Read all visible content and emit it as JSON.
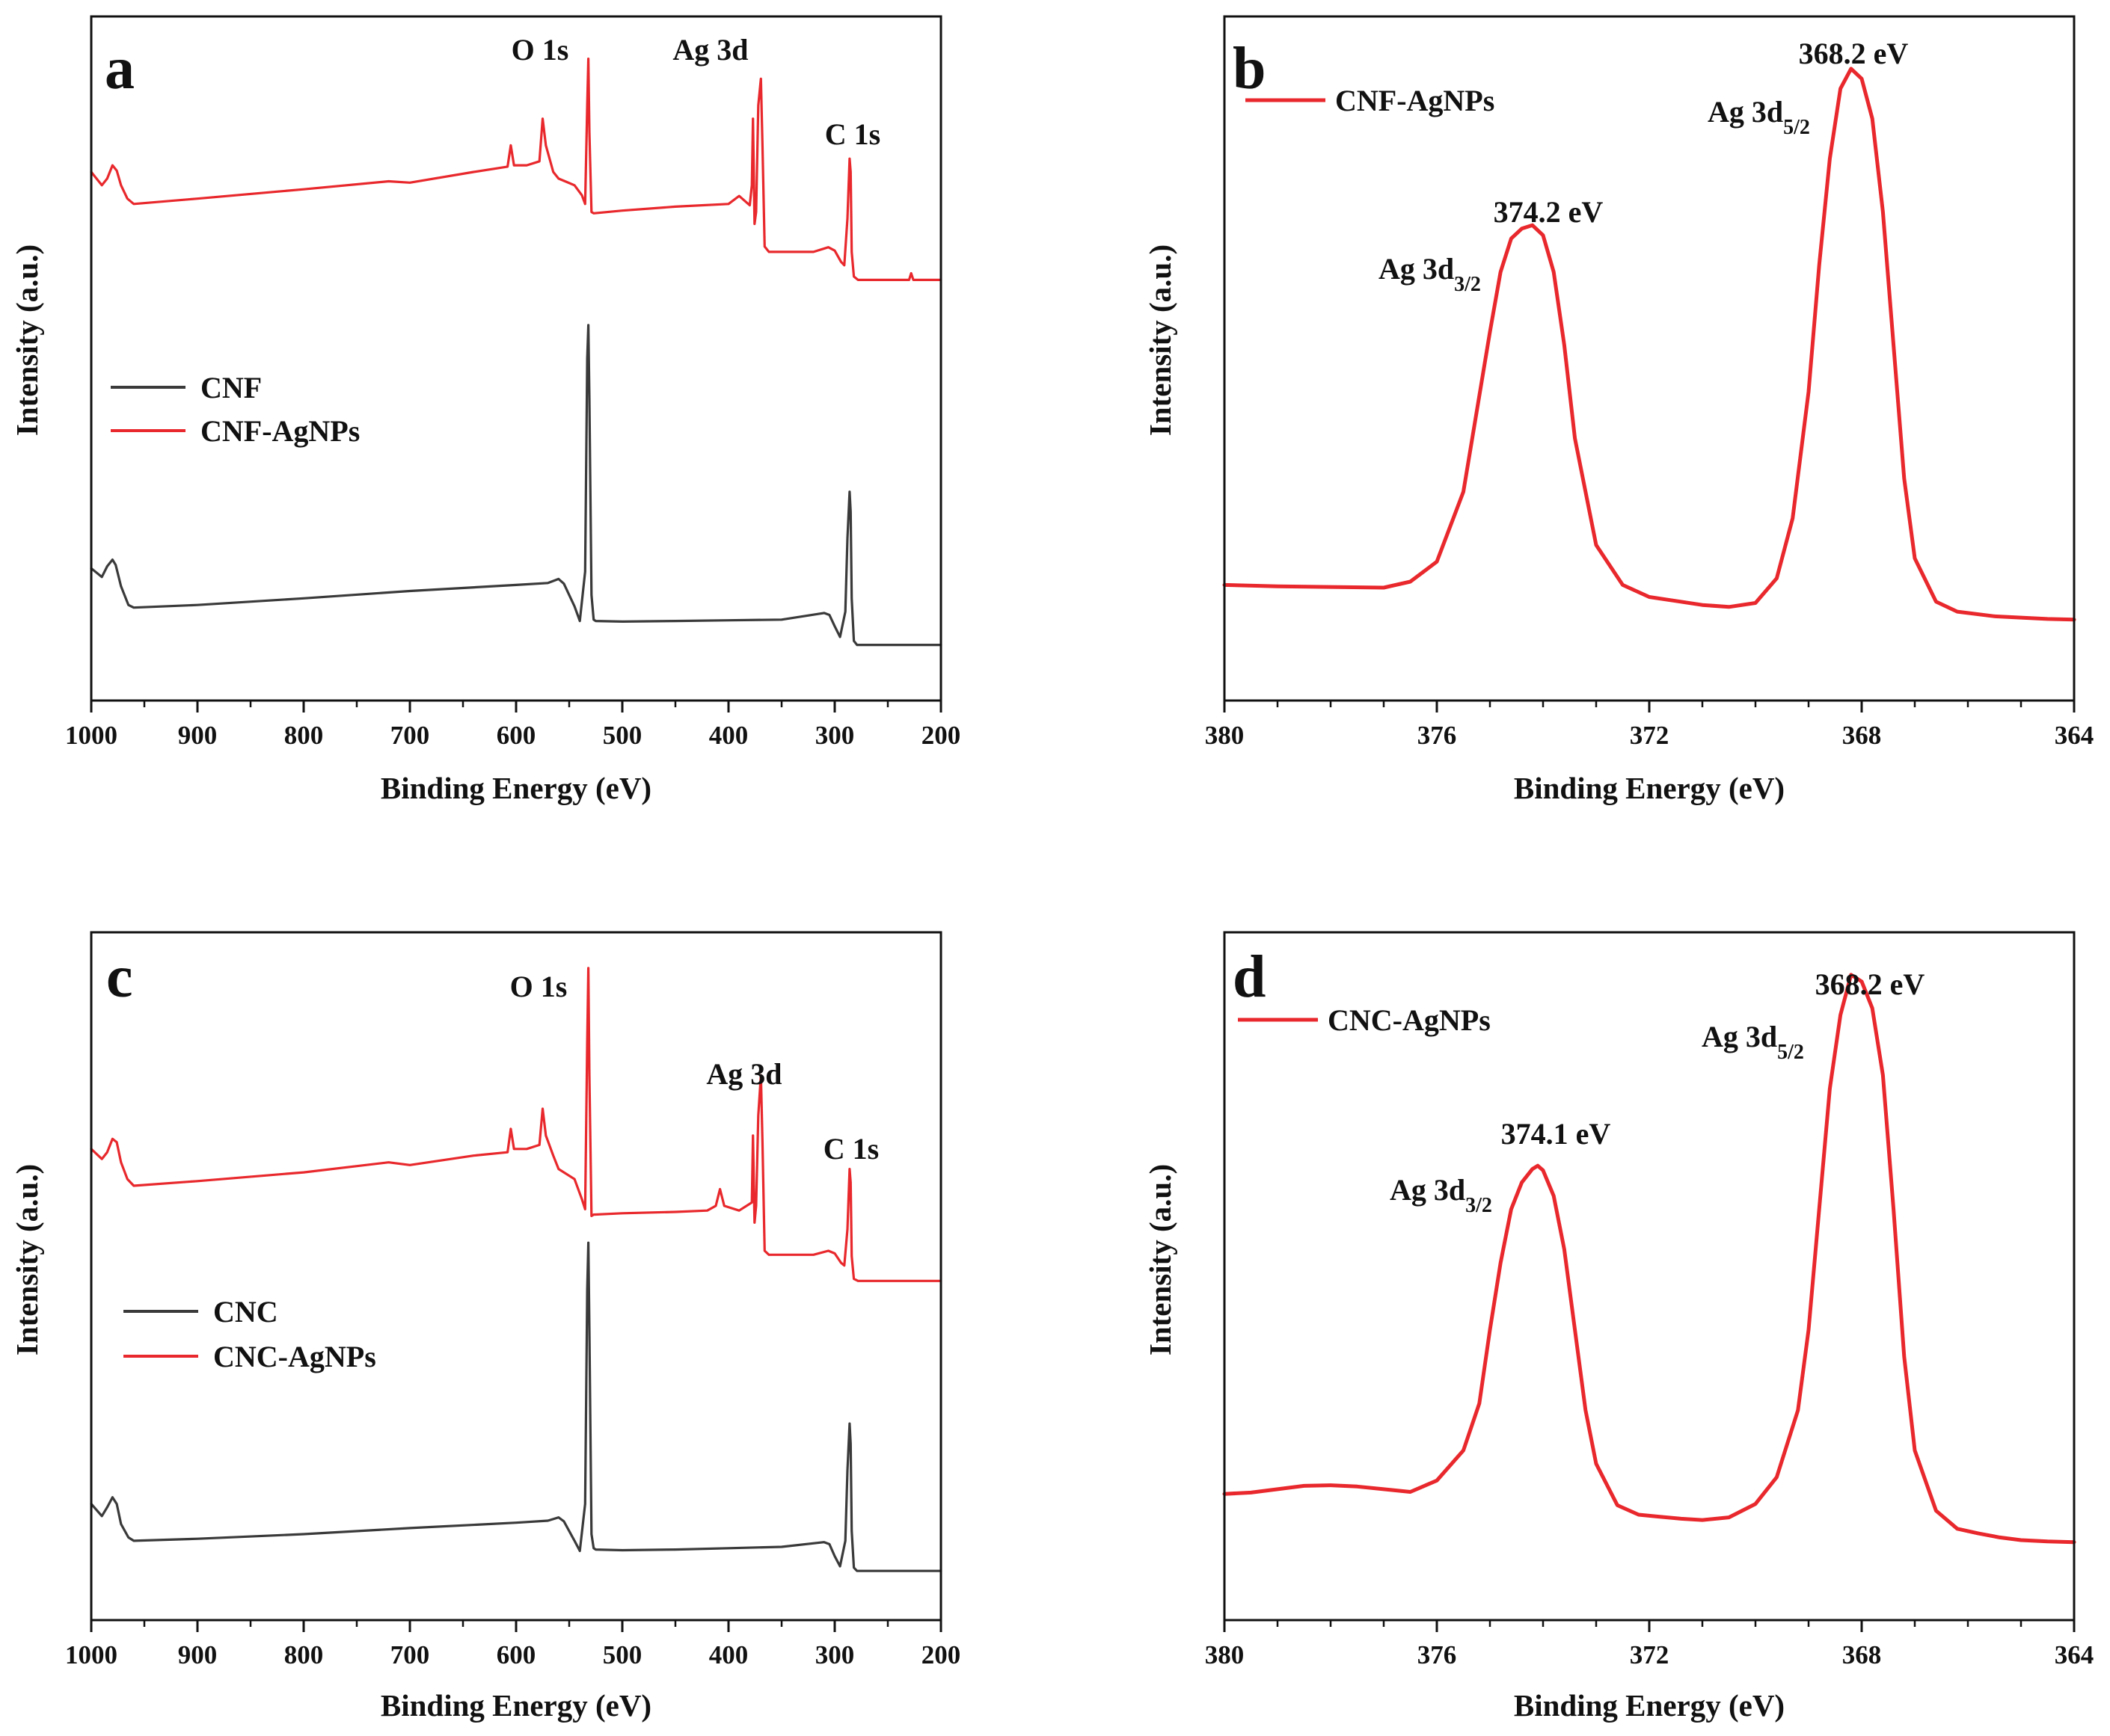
{
  "colors": {
    "red": "#e8282c",
    "dark": "#3a3a3a",
    "frame": "#111111"
  },
  "chart_data": [
    {
      "panel": "a",
      "type": "line",
      "xlabel": "Binding Energy (eV)",
      "ylabel": "Intensity (a.u.)",
      "xlim": [
        1000,
        200
      ],
      "ylim": [
        0,
        100
      ],
      "xticks": [
        1000,
        900,
        800,
        700,
        600,
        500,
        400,
        300,
        200
      ],
      "xtick_labels": [
        "1000",
        "900",
        "800",
        "700",
        "600",
        "500",
        "400",
        "300",
        "200"
      ],
      "minor_step": 50,
      "legend": {
        "position": "middle-left",
        "entries": [
          "CNF",
          "CNF-AgNPs"
        ]
      },
      "series": [
        {
          "name": "CNF",
          "color": "#3a3a3a",
          "x": [
            1000,
            990,
            985,
            980,
            977,
            972,
            965,
            960,
            900,
            800,
            700,
            600,
            570,
            560,
            555,
            545,
            540,
            535,
            533,
            532,
            531,
            529,
            527,
            525,
            500,
            450,
            400,
            350,
            310,
            305,
            300,
            295,
            290,
            288,
            286,
            285,
            284,
            282,
            279,
            250,
            200
          ],
          "y": [
            18.5,
            17.2,
            18.8,
            19.8,
            19.0,
            15.8,
            13.0,
            12.6,
            13.0,
            14.0,
            15.1,
            16.0,
            16.3,
            16.9,
            16.2,
            12.8,
            10.6,
            18.0,
            50.0,
            55.0,
            44.0,
            14.5,
            10.8,
            10.6,
            10.5,
            10.6,
            10.7,
            10.8,
            11.8,
            11.5,
            9.8,
            8.2,
            12.0,
            23.0,
            30.0,
            27.0,
            14.0,
            7.6,
            7.0,
            7.0,
            7.0
          ]
        },
        {
          "name": "CNF-AgNPs",
          "color": "#e8282c",
          "x": [
            1000,
            990,
            985,
            980,
            976,
            972,
            966,
            960,
            900,
            800,
            720,
            700,
            640,
            608,
            605,
            602,
            590,
            578,
            575,
            572,
            565,
            560,
            545,
            538,
            535,
            533,
            532,
            531,
            529,
            527,
            500,
            450,
            400,
            390,
            380,
            378,
            377,
            375.5,
            374,
            372,
            369.5,
            368,
            366,
            362,
            320,
            306,
            300,
            294,
            291,
            288,
            286,
            285,
            284,
            282,
            278,
            240,
            230,
            228,
            226,
            220,
            200
          ],
          "y": [
            78.0,
            76.0,
            77.0,
            79.0,
            78.2,
            76.0,
            74.0,
            73.2,
            74.0,
            75.4,
            76.6,
            76.4,
            78.0,
            78.8,
            82.0,
            79.0,
            79.0,
            79.6,
            86.0,
            82.0,
            78.0,
            77.0,
            76.0,
            74.5,
            73.2,
            88.0,
            95.0,
            84.0,
            72.0,
            71.8,
            72.2,
            72.8,
            73.2,
            74.4,
            73.0,
            76.0,
            86.0,
            70.2,
            72.0,
            88.0,
            92.0,
            82.0,
            66.8,
            66.0,
            66.0,
            66.7,
            66.2,
            64.5,
            64.0,
            71.0,
            80.0,
            78.0,
            66.0,
            62.3,
            61.8,
            61.8,
            61.8,
            62.8,
            61.8,
            61.8,
            61.8
          ]
        }
      ],
      "annotations": [
        "O 1s",
        "Ag 3d",
        "C 1s"
      ]
    },
    {
      "panel": "b",
      "type": "line",
      "xlabel": "Binding Energy (eV)",
      "ylabel": "Intensity (a.u.)",
      "xlim": [
        380,
        364
      ],
      "ylim": [
        0,
        100
      ],
      "xticks": [
        380,
        376,
        372,
        368,
        364
      ],
      "xtick_labels": [
        "380",
        "376",
        "372",
        "368",
        "364"
      ],
      "minor_step": 1,
      "legend": {
        "position": "top-left",
        "entries": [
          "CNF-AgNPs"
        ]
      },
      "series": [
        {
          "name": "CNF-AgNPs",
          "color": "#e8282c",
          "x": [
            380,
            379,
            378,
            377,
            376.5,
            376,
            375.5,
            375,
            374.8,
            374.6,
            374.4,
            374.2,
            374,
            373.8,
            373.6,
            373.4,
            373,
            372.5,
            372,
            371.5,
            371,
            370.5,
            370,
            369.6,
            369.3,
            369,
            368.8,
            368.6,
            368.4,
            368.2,
            368,
            367.8,
            367.6,
            367.4,
            367.2,
            367,
            366.6,
            366.2,
            365.5,
            365,
            364.5,
            364
          ],
          "y": [
            16.0,
            15.8,
            15.7,
            15.6,
            16.5,
            19.5,
            30.0,
            54.0,
            63.0,
            68.0,
            69.5,
            70.0,
            68.5,
            63.0,
            52.0,
            38.0,
            22.0,
            16.0,
            14.2,
            13.6,
            13.0,
            12.7,
            13.3,
            17.0,
            26.0,
            45.0,
            64.0,
            80.0,
            90.5,
            93.5,
            92.0,
            86.0,
            72.0,
            52.0,
            32.0,
            20.0,
            13.5,
            12.0,
            11.3,
            11.1,
            10.9,
            10.8
          ]
        }
      ],
      "annotations": [
        "368.2 eV",
        "Ag 3d5/2",
        "374.2 eV",
        "Ag 3d3/2"
      ]
    },
    {
      "panel": "c",
      "type": "line",
      "xlabel": "Binding Energy (eV)",
      "ylabel": "Intensity (a.u.)",
      "xlim": [
        1000,
        200
      ],
      "ylim": [
        0,
        100
      ],
      "xticks": [
        1000,
        900,
        800,
        700,
        600,
        500,
        400,
        300,
        200
      ],
      "xtick_labels": [
        "1000",
        "900",
        "800",
        "700",
        "600",
        "500",
        "400",
        "300",
        "200"
      ],
      "minor_step": 50,
      "legend": {
        "position": "middle-left",
        "entries": [
          "CNC",
          "CNC-AgNPs"
        ]
      },
      "series": [
        {
          "name": "CNC",
          "color": "#3a3a3a",
          "x": [
            1000,
            990,
            985,
            980,
            976,
            972,
            965,
            960,
            900,
            800,
            700,
            600,
            570,
            560,
            555,
            545,
            540,
            535,
            533,
            532,
            531,
            529,
            527,
            525,
            500,
            450,
            400,
            350,
            310,
            305,
            300,
            295,
            290,
            288,
            286,
            285,
            284,
            282,
            279,
            250,
            200
          ],
          "y": [
            16.0,
            14.2,
            15.5,
            17.0,
            16.0,
            13.0,
            11.0,
            10.5,
            10.8,
            11.5,
            12.4,
            13.2,
            13.5,
            14.0,
            13.4,
            10.5,
            9.0,
            16.0,
            48.0,
            55.0,
            42.0,
            11.5,
            9.4,
            9.2,
            9.1,
            9.2,
            9.4,
            9.6,
            10.3,
            10.0,
            8.2,
            6.7,
            10.5,
            21.0,
            28.0,
            25.0,
            12.0,
            6.5,
            6.0,
            6.0,
            6.0
          ]
        },
        {
          "name": "CNC-AgNPs",
          "color": "#e8282c",
          "x": [
            1000,
            990,
            985,
            980,
            976,
            972,
            966,
            960,
            900,
            800,
            720,
            700,
            640,
            608,
            605,
            602,
            590,
            578,
            575,
            572,
            565,
            560,
            545,
            538,
            535,
            533,
            532,
            531,
            529,
            527,
            500,
            450,
            420,
            412,
            408,
            404,
            390,
            378,
            377,
            375.5,
            374,
            372,
            369.5,
            368,
            366,
            362,
            320,
            306,
            300,
            294,
            291,
            288,
            286,
            285,
            284,
            282,
            278,
            240,
            200
          ],
          "y": [
            69.0,
            67.5,
            68.5,
            70.5,
            70.0,
            67.0,
            64.5,
            63.5,
            64.2,
            65.5,
            67.0,
            66.6,
            68.0,
            68.5,
            72.0,
            69.0,
            69.0,
            69.6,
            75.0,
            71.0,
            68.0,
            66.0,
            64.5,
            61.5,
            60.0,
            85.0,
            96.0,
            80.0,
            59.0,
            59.2,
            59.4,
            59.6,
            59.8,
            60.5,
            63.0,
            60.5,
            59.8,
            61.0,
            71.0,
            58.0,
            60.5,
            74.0,
            80.0,
            70.0,
            53.8,
            53.2,
            53.2,
            53.8,
            53.4,
            52.0,
            51.6,
            57.0,
            66.0,
            64.0,
            53.0,
            49.6,
            49.3,
            49.3,
            49.3
          ]
        }
      ],
      "annotations": [
        "O 1s",
        "Ag 3d",
        "C 1s"
      ]
    },
    {
      "panel": "d",
      "type": "line",
      "xlabel": "Binding Energy (eV)",
      "ylabel": "Intensity (a.u.)",
      "xlim": [
        380,
        364
      ],
      "ylim": [
        0,
        100
      ],
      "xticks": [
        380,
        376,
        372,
        368,
        364
      ],
      "xtick_labels": [
        "380",
        "376",
        "372",
        "368",
        "364"
      ],
      "minor_step": 1,
      "legend": {
        "position": "top-left",
        "entries": [
          "CNC-AgNPs"
        ]
      },
      "series": [
        {
          "name": "CNC-AgNPs",
          "color": "#e8282c",
          "x": [
            380,
            379.5,
            379,
            378.5,
            378,
            377.5,
            377,
            376.5,
            376,
            375.5,
            375.2,
            375,
            374.8,
            374.6,
            374.4,
            374.2,
            374.1,
            374,
            373.8,
            373.6,
            373.4,
            373.2,
            373,
            372.6,
            372.2,
            371.8,
            371.4,
            371,
            370.5,
            370,
            369.6,
            369.2,
            369,
            368.8,
            368.6,
            368.4,
            368.2,
            368,
            367.8,
            367.6,
            367.4,
            367.2,
            367,
            366.6,
            366.2,
            365.8,
            365.4,
            365,
            364.5,
            364
          ],
          "y": [
            17.5,
            17.7,
            18.2,
            18.7,
            18.8,
            18.6,
            18.2,
            17.8,
            19.5,
            24.0,
            31.0,
            42.0,
            52.0,
            60.0,
            64.0,
            66.0,
            66.5,
            65.8,
            62.0,
            54.0,
            42.0,
            30.0,
            22.0,
            15.8,
            14.4,
            14.1,
            13.8,
            13.6,
            14.0,
            16.0,
            20.0,
            30.0,
            42.0,
            60.0,
            78.0,
            89.0,
            95.0,
            94.0,
            90.0,
            80.0,
            60.0,
            38.0,
            24.0,
            15.0,
            12.3,
            11.6,
            11.0,
            10.6,
            10.4,
            10.3
          ]
        }
      ],
      "annotations": [
        "368.2 eV",
        "Ag 3d5/2",
        "374.1 eV",
        "Ag 3d3/2"
      ]
    }
  ],
  "panels": [
    {
      "letter": "a",
      "xlabel": "Binding Energy (eV)",
      "ylabel": "Intensity (a.u.)",
      "legend": [
        "CNF",
        "CNF-AgNPs"
      ],
      "annotations": {
        "o1s": "O 1s",
        "ag3d": "Ag 3d",
        "c1s": "C 1s"
      }
    },
    {
      "letter": "b",
      "xlabel": "Binding Energy (eV)",
      "ylabel": "Intensity (a.u.)",
      "legend": [
        "CNF-AgNPs"
      ],
      "annotations": {
        "peak1_ev": "368.2 eV",
        "peak1_base": "Ag 3d",
        "peak1_sub": "5/2",
        "peak2_ev": "374.2 eV",
        "peak2_base": "Ag 3d",
        "peak2_sub": "3/2"
      }
    },
    {
      "letter": "c",
      "xlabel": "Binding Energy (eV)",
      "ylabel": "Intensity (a.u.)",
      "legend": [
        "CNC",
        "CNC-AgNPs"
      ],
      "annotations": {
        "o1s": "O 1s",
        "ag3d": "Ag 3d",
        "c1s": "C 1s"
      }
    },
    {
      "letter": "d",
      "xlabel": "Binding Energy (eV)",
      "ylabel": "Intensity (a.u.)",
      "legend": [
        "CNC-AgNPs"
      ],
      "annotations": {
        "peak1_ev": "368.2 eV",
        "peak1_base": "Ag 3d",
        "peak1_sub": "5/2",
        "peak2_ev": "374.1 eV",
        "peak2_base": "Ag 3d",
        "peak2_sub": "3/2"
      }
    }
  ]
}
